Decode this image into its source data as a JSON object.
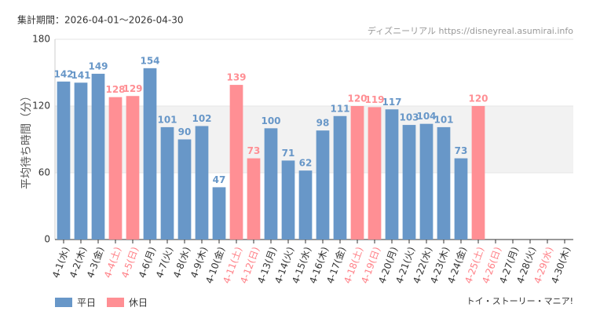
{
  "chart_data": {
    "type": "bar",
    "subtitle": "集計期間：2026-04-01～2026-04-30",
    "source": "ディズニーリアル https://disneyreal.asumirai.info",
    "attraction": "トイ・ストーリー・マニア!",
    "y_label": "平均待ち時間（分）",
    "categories": [
      "4-1(水)",
      "4-2(木)",
      "4-3(金)",
      "4-4(土)",
      "4-5(日)",
      "4-6(月)",
      "4-7(火)",
      "4-8(水)",
      "4-9(木)",
      "4-10(金)",
      "4-11(土)",
      "4-12(日)",
      "4-13(月)",
      "4-14(火)",
      "4-15(水)",
      "4-16(木)",
      "4-17(金)",
      "4-18(土)",
      "4-19(日)",
      "4-20(月)",
      "4-21(火)",
      "4-22(水)",
      "4-23(木)",
      "4-24(金)",
      "4-25(土)",
      "4-26(日)",
      "4-27(月)",
      "4-28(火)",
      "4-29(水)",
      "4-30(木)"
    ],
    "category_colors": [
      "#333",
      "#333",
      "#333",
      "#ff7f86",
      "#ff7f86",
      "#333",
      "#333",
      "#333",
      "#333",
      "#333",
      "#ff7f86",
      "#ff7f86",
      "#333",
      "#333",
      "#333",
      "#333",
      "#333",
      "#ff7f86",
      "#ff7f86",
      "#333",
      "#333",
      "#333",
      "#333",
      "#333",
      "#ff7f86",
      "#ff7f86",
      "#333",
      "#333",
      "#ff7f86",
      "#333"
    ],
    "series": [
      {
        "name": "平日",
        "color": "#6897c8",
        "values": [
          142,
          141,
          149,
          null,
          null,
          154,
          101,
          90,
          102,
          47,
          null,
          null,
          100,
          71,
          62,
          98,
          111,
          null,
          null,
          117,
          103,
          104,
          101,
          73,
          null,
          null,
          null,
          null,
          null,
          null
        ]
      },
      {
        "name": "休日",
        "color": "#ff8f94",
        "values": [
          null,
          null,
          null,
          128,
          129,
          null,
          null,
          null,
          null,
          null,
          139,
          73,
          null,
          null,
          null,
          null,
          null,
          120,
          119,
          null,
          null,
          null,
          null,
          null,
          120,
          null,
          null,
          null,
          null,
          null
        ]
      }
    ],
    "ylim": [
      0,
      180
    ],
    "yticks": [
      0,
      60,
      120,
      180
    ],
    "shaded_range": [
      60,
      120
    ],
    "grid": true
  }
}
